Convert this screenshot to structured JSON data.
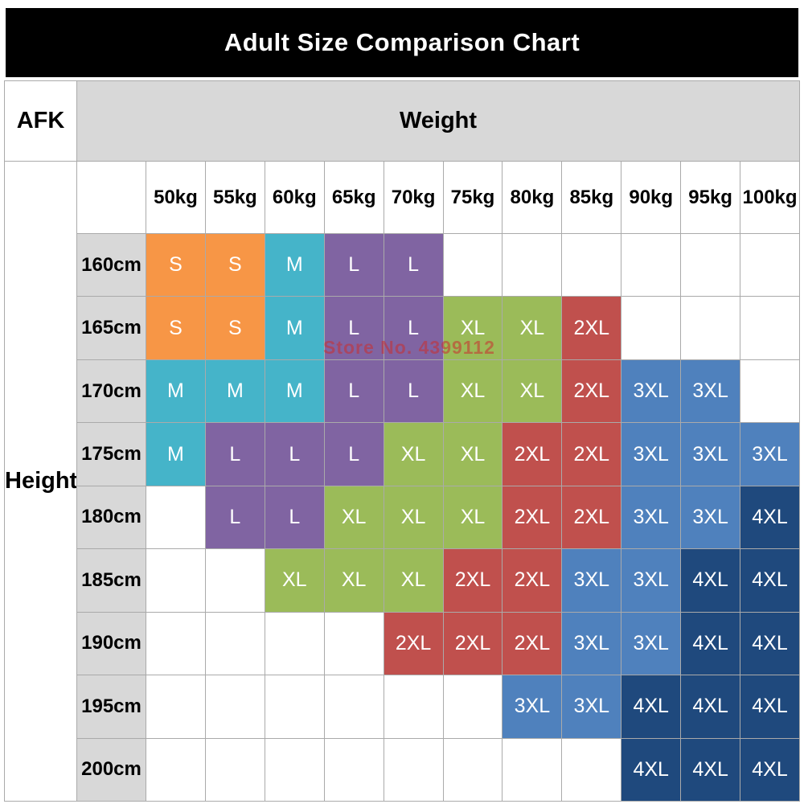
{
  "title": "Adult Size Comparison Chart",
  "corner_label": "AFK",
  "watermark": "Store No. 4399112",
  "header_bg": "#d8d8d8",
  "size_colors": {
    "S": "#F79646",
    "M": "#45B4C9",
    "L": "#8064A2",
    "XL": "#9BBB59",
    "2XL": "#C0504D",
    "3XL": "#4F81BD",
    "4XL": "#1F497D"
  },
  "chart_data": {
    "type": "table",
    "title": "Adult Size Comparison Chart",
    "column_header": "Weight",
    "row_header": "Height",
    "columns": [
      "50kg",
      "55kg",
      "60kg",
      "65kg",
      "70kg",
      "75kg",
      "80kg",
      "85kg",
      "90kg",
      "95kg",
      "100kg"
    ],
    "row_labels": [
      "160cm",
      "165cm",
      "170cm",
      "175cm",
      "180cm",
      "185cm",
      "190cm",
      "195cm",
      "200cm"
    ],
    "values": [
      [
        "S",
        "S",
        "M",
        "L",
        "L",
        "",
        "",
        "",
        "",
        "",
        ""
      ],
      [
        "S",
        "S",
        "M",
        "L",
        "L",
        "XL",
        "XL",
        "2XL",
        "",
        "",
        ""
      ],
      [
        "M",
        "M",
        "M",
        "L",
        "L",
        "XL",
        "XL",
        "2XL",
        "3XL",
        "3XL",
        ""
      ],
      [
        "M",
        "L",
        "L",
        "L",
        "XL",
        "XL",
        "2XL",
        "2XL",
        "3XL",
        "3XL",
        "3XL"
      ],
      [
        "",
        "L",
        "L",
        "XL",
        "XL",
        "XL",
        "2XL",
        "2XL",
        "3XL",
        "3XL",
        "4XL"
      ],
      [
        "",
        "",
        "XL",
        "XL",
        "XL",
        "2XL",
        "2XL",
        "3XL",
        "3XL",
        "4XL",
        "4XL"
      ],
      [
        "",
        "",
        "",
        "",
        "2XL",
        "2XL",
        "2XL",
        "3XL",
        "3XL",
        "4XL",
        "4XL"
      ],
      [
        "",
        "",
        "",
        "",
        "",
        "",
        "3XL",
        "3XL",
        "4XL",
        "4XL",
        "4XL"
      ],
      [
        "",
        "",
        "",
        "",
        "",
        "",
        "",
        "",
        "4XL",
        "4XL",
        "4XL"
      ]
    ]
  }
}
